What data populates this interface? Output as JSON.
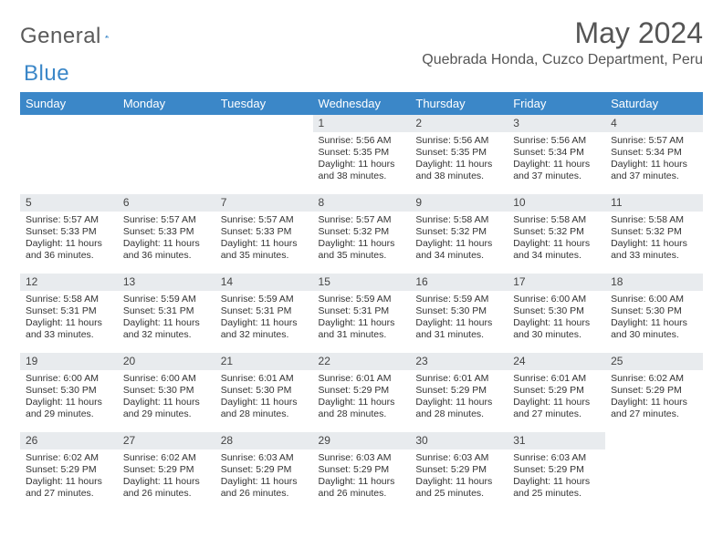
{
  "brand": {
    "word1": "General",
    "word2": "Blue"
  },
  "title": "May 2024",
  "location": "Quebrada Honda, Cuzco Department, Peru",
  "colors": {
    "header_bg": "#3b87c8",
    "header_text": "#ffffff",
    "daynum_bg": "#e8ebee",
    "body_text": "#333333",
    "title_text": "#555555",
    "brand_gray": "#5a5a5a",
    "brand_blue": "#3b87c8"
  },
  "weekdays": [
    "Sunday",
    "Monday",
    "Tuesday",
    "Wednesday",
    "Thursday",
    "Friday",
    "Saturday"
  ],
  "weeks": [
    [
      null,
      null,
      null,
      {
        "n": "1",
        "sr": "5:56 AM",
        "ss": "5:35 PM",
        "dl": "11 hours and 38 minutes."
      },
      {
        "n": "2",
        "sr": "5:56 AM",
        "ss": "5:35 PM",
        "dl": "11 hours and 38 minutes."
      },
      {
        "n": "3",
        "sr": "5:56 AM",
        "ss": "5:34 PM",
        "dl": "11 hours and 37 minutes."
      },
      {
        "n": "4",
        "sr": "5:57 AM",
        "ss": "5:34 PM",
        "dl": "11 hours and 37 minutes."
      }
    ],
    [
      {
        "n": "5",
        "sr": "5:57 AM",
        "ss": "5:33 PM",
        "dl": "11 hours and 36 minutes."
      },
      {
        "n": "6",
        "sr": "5:57 AM",
        "ss": "5:33 PM",
        "dl": "11 hours and 36 minutes."
      },
      {
        "n": "7",
        "sr": "5:57 AM",
        "ss": "5:33 PM",
        "dl": "11 hours and 35 minutes."
      },
      {
        "n": "8",
        "sr": "5:57 AM",
        "ss": "5:32 PM",
        "dl": "11 hours and 35 minutes."
      },
      {
        "n": "9",
        "sr": "5:58 AM",
        "ss": "5:32 PM",
        "dl": "11 hours and 34 minutes."
      },
      {
        "n": "10",
        "sr": "5:58 AM",
        "ss": "5:32 PM",
        "dl": "11 hours and 34 minutes."
      },
      {
        "n": "11",
        "sr": "5:58 AM",
        "ss": "5:32 PM",
        "dl": "11 hours and 33 minutes."
      }
    ],
    [
      {
        "n": "12",
        "sr": "5:58 AM",
        "ss": "5:31 PM",
        "dl": "11 hours and 33 minutes."
      },
      {
        "n": "13",
        "sr": "5:59 AM",
        "ss": "5:31 PM",
        "dl": "11 hours and 32 minutes."
      },
      {
        "n": "14",
        "sr": "5:59 AM",
        "ss": "5:31 PM",
        "dl": "11 hours and 32 minutes."
      },
      {
        "n": "15",
        "sr": "5:59 AM",
        "ss": "5:31 PM",
        "dl": "11 hours and 31 minutes."
      },
      {
        "n": "16",
        "sr": "5:59 AM",
        "ss": "5:30 PM",
        "dl": "11 hours and 31 minutes."
      },
      {
        "n": "17",
        "sr": "6:00 AM",
        "ss": "5:30 PM",
        "dl": "11 hours and 30 minutes."
      },
      {
        "n": "18",
        "sr": "6:00 AM",
        "ss": "5:30 PM",
        "dl": "11 hours and 30 minutes."
      }
    ],
    [
      {
        "n": "19",
        "sr": "6:00 AM",
        "ss": "5:30 PM",
        "dl": "11 hours and 29 minutes."
      },
      {
        "n": "20",
        "sr": "6:00 AM",
        "ss": "5:30 PM",
        "dl": "11 hours and 29 minutes."
      },
      {
        "n": "21",
        "sr": "6:01 AM",
        "ss": "5:30 PM",
        "dl": "11 hours and 28 minutes."
      },
      {
        "n": "22",
        "sr": "6:01 AM",
        "ss": "5:29 PM",
        "dl": "11 hours and 28 minutes."
      },
      {
        "n": "23",
        "sr": "6:01 AM",
        "ss": "5:29 PM",
        "dl": "11 hours and 28 minutes."
      },
      {
        "n": "24",
        "sr": "6:01 AM",
        "ss": "5:29 PM",
        "dl": "11 hours and 27 minutes."
      },
      {
        "n": "25",
        "sr": "6:02 AM",
        "ss": "5:29 PM",
        "dl": "11 hours and 27 minutes."
      }
    ],
    [
      {
        "n": "26",
        "sr": "6:02 AM",
        "ss": "5:29 PM",
        "dl": "11 hours and 27 minutes."
      },
      {
        "n": "27",
        "sr": "6:02 AM",
        "ss": "5:29 PM",
        "dl": "11 hours and 26 minutes."
      },
      {
        "n": "28",
        "sr": "6:03 AM",
        "ss": "5:29 PM",
        "dl": "11 hours and 26 minutes."
      },
      {
        "n": "29",
        "sr": "6:03 AM",
        "ss": "5:29 PM",
        "dl": "11 hours and 26 minutes."
      },
      {
        "n": "30",
        "sr": "6:03 AM",
        "ss": "5:29 PM",
        "dl": "11 hours and 25 minutes."
      },
      {
        "n": "31",
        "sr": "6:03 AM",
        "ss": "5:29 PM",
        "dl": "11 hours and 25 minutes."
      },
      null
    ]
  ],
  "labels": {
    "sunrise": "Sunrise: ",
    "sunset": "Sunset: ",
    "daylight": "Daylight: "
  }
}
